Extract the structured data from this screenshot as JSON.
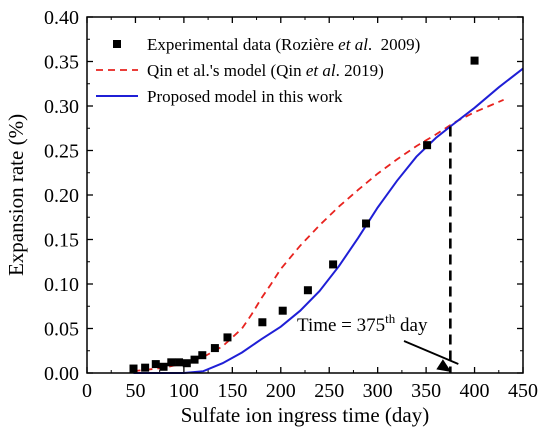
{
  "chart_data": {
    "type": "scatter",
    "xlabel": "Sulfate ion  ingress time (day)",
    "ylabel": "Expansion rate (%)",
    "xlim": [
      0,
      450
    ],
    "ylim": [
      0,
      0.4
    ],
    "xticks": [
      "0",
      "50",
      "100",
      "150",
      "200",
      "250",
      "300",
      "350",
      "400",
      "450"
    ],
    "yticks": [
      "0.00",
      "0.05",
      "0.10",
      "0.15",
      "0.20",
      "0.25",
      "0.30",
      "0.35",
      "0.40"
    ],
    "grid": false,
    "legend_position": "top-left",
    "series": [
      {
        "name_parts": [
          {
            "text": "Experimental data (Rozière ",
            "italic": false
          },
          {
            "text": "et al",
            "italic": true
          },
          {
            "text": ".  2009)",
            "italic": false
          }
        ],
        "kind": "markers",
        "color": "#000000",
        "x": [
          48,
          60,
          71,
          79,
          87,
          95,
          103,
          111,
          119,
          132,
          145,
          181,
          202,
          228,
          254,
          288,
          351,
          400
        ],
        "y": [
          0.005,
          0.006,
          0.01,
          0.007,
          0.012,
          0.012,
          0.011,
          0.015,
          0.02,
          0.028,
          0.04,
          0.057,
          0.07,
          0.093,
          0.122,
          0.168,
          0.256,
          0.351
        ]
      },
      {
        "name_parts": [
          {
            "text": "Qin et al.'s model (Qin ",
            "italic": false
          },
          {
            "text": "et al",
            "italic": true
          },
          {
            "text": ". 2019)",
            "italic": false
          }
        ],
        "kind": "dashed-line",
        "color": "#e8231f",
        "x": [
          48,
          80,
          100,
          120,
          140,
          160,
          170,
          180,
          190,
          200,
          220,
          240,
          260,
          280,
          300,
          320,
          340,
          360,
          380,
          400,
          430
        ],
        "y": [
          0.002,
          0.006,
          0.011,
          0.018,
          0.03,
          0.05,
          0.066,
          0.084,
          0.1,
          0.117,
          0.143,
          0.166,
          0.187,
          0.206,
          0.224,
          0.24,
          0.255,
          0.268,
          0.282,
          0.293,
          0.307
        ]
      },
      {
        "name_parts": [
          {
            "text": "Proposed model in this work",
            "italic": false
          }
        ],
        "kind": "line",
        "color": "#1f1fd6",
        "x": [
          48,
          100,
          120,
          140,
          160,
          180,
          200,
          220,
          240,
          260,
          280,
          300,
          320,
          340,
          360,
          375,
          400,
          425,
          450
        ],
        "y": [
          0.0,
          0.0,
          0.002,
          0.011,
          0.023,
          0.038,
          0.052,
          0.07,
          0.092,
          0.12,
          0.152,
          0.186,
          0.216,
          0.243,
          0.264,
          0.277,
          0.298,
          0.321,
          0.342
        ]
      }
    ],
    "annotation": {
      "text_main": "Time = 375",
      "text_sup": "th",
      "text_tail": " day",
      "x": 375,
      "y": 0.277
    }
  }
}
